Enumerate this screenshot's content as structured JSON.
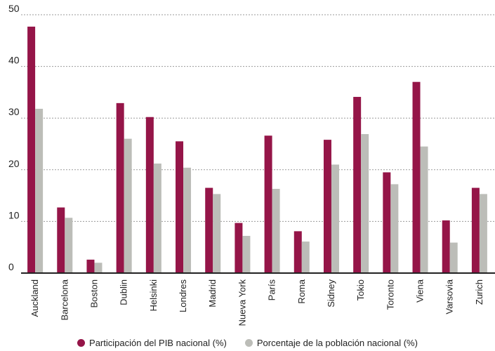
{
  "chart_data": {
    "type": "bar",
    "title": "",
    "xlabel": "",
    "ylabel": "",
    "ylim": [
      0,
      50
    ],
    "yticks": [
      0,
      10,
      20,
      30,
      40,
      50
    ],
    "grid": true,
    "legend_position": "bottom",
    "categories": [
      "Auckland",
      "Barcelona",
      "Boston",
      "Dublin",
      "Helsinki",
      "Londres",
      "Madrid",
      "Nueva York",
      "París",
      "Roma",
      "Sidney",
      "Tokio",
      "Toronto",
      "Viena",
      "Varsovia",
      "Zurich"
    ],
    "series": [
      {
        "name": "Participación del PIB nacional (%)",
        "color": "#951548",
        "values": [
          47.7,
          12.7,
          2.6,
          32.9,
          30.2,
          25.5,
          16.5,
          9.7,
          26.6,
          8.1,
          25.8,
          34.1,
          19.5,
          37.0,
          10.2,
          16.5
        ]
      },
      {
        "name": "Porcentaje de la población nacional (%)",
        "color": "#bcbdb8",
        "values": [
          31.8,
          10.7,
          2.0,
          26.0,
          21.2,
          20.4,
          15.3,
          7.2,
          16.3,
          6.1,
          21.0,
          26.9,
          17.2,
          24.5,
          5.9,
          15.3
        ]
      }
    ]
  }
}
